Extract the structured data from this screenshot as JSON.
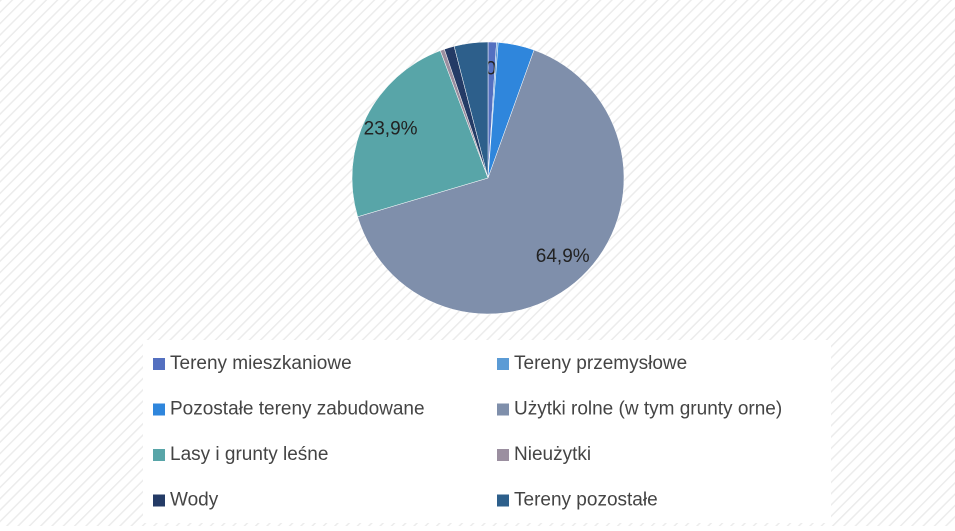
{
  "chart_data": {
    "type": "pie",
    "categories": [
      "Tereny mieszkaniowe",
      "Tereny przemysłowe",
      "Pozostałe tereny zabudowane",
      "Użytki rolne (w tym grunty orne)",
      "Lasy i grunty leśne",
      "Nieużytki",
      "Wody",
      "Tereny pozostałe"
    ],
    "values": [
      1.0,
      0.2,
      4.3,
      64.9,
      23.9,
      0.5,
      1.2,
      4.0
    ],
    "value_labels": [
      "1,0%",
      null,
      null,
      "64,9%",
      "23,9%",
      null,
      null,
      null
    ],
    "colors": [
      "#5470c0",
      "#5b9bd5",
      "#2f86dc",
      "#7f8fab",
      "#58a5a8",
      "#9b8fa0",
      "#243b66",
      "#2d5f8b"
    ]
  }
}
